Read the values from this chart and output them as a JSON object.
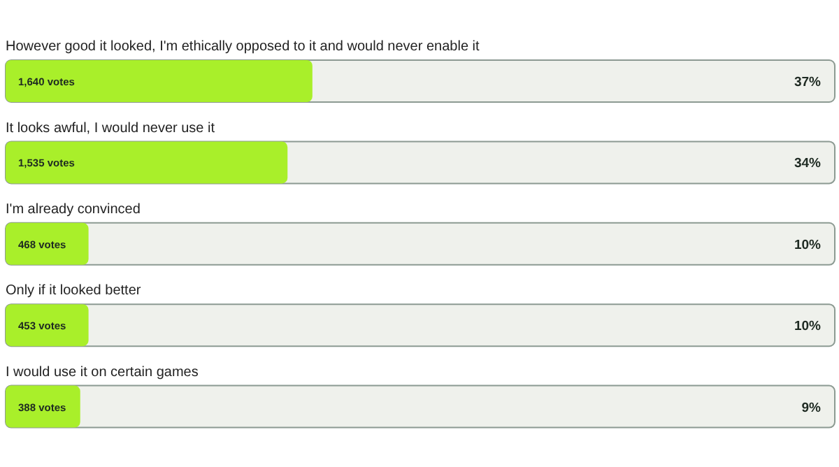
{
  "chart_data": {
    "type": "bar",
    "orientation": "horizontal",
    "categories": [
      "However good it looked, I'm ethically opposed to it and would never enable it",
      "It looks awful, I would never use it",
      "I'm already convinced",
      "Only if it looked better",
      "I would use it on certain games"
    ],
    "values": [
      37,
      34,
      10,
      10,
      9
    ],
    "color": "#a9ef2a",
    "value_labels": [
      "37%",
      "34%",
      "10%",
      "10%",
      "9%"
    ],
    "tick_labels": "y",
    "annotations": [
      "1,640 votes",
      "1,535 votes",
      "468 votes",
      "453 votes",
      "388 votes"
    ]
  }
}
